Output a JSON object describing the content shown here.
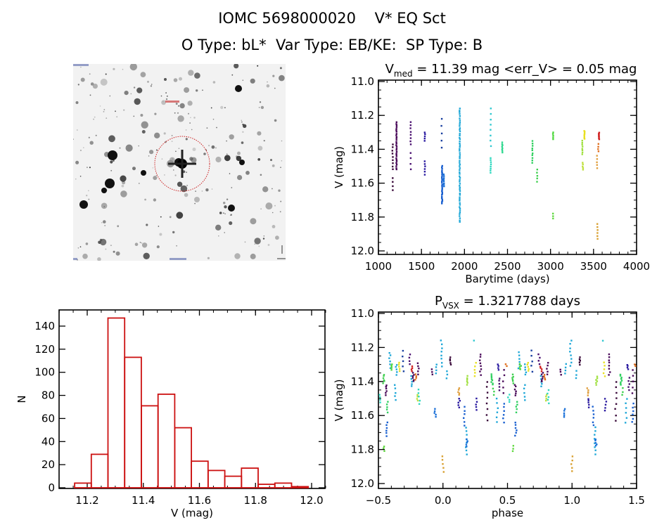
{
  "header": {
    "title_line1": "IOMC 5698000020    V* EQ Sct",
    "title_line2": "O Type: bL*  Var Type: EB/KE:  SP Type: B"
  },
  "image_panel": {
    "description": "finder chart (inverted grayscale DSS image) with red circle marking target",
    "marker_color": "#cc2222"
  },
  "chart_data": [
    {
      "id": "lightcurve",
      "type": "scatter",
      "title_main": "V",
      "title_sub": "med",
      "title_rest": " = 11.39 mag <err_V> = 0.05 mag",
      "xlabel": "Barytime (days)",
      "ylabel": "V (mag)",
      "xlim": [
        1000,
        4000
      ],
      "ylim": [
        12.0,
        11.0
      ],
      "y_inverted": true,
      "xticks": [
        "1000",
        "1500",
        "2000",
        "2500",
        "3000",
        "3500",
        "4000"
      ],
      "yticks": [
        "11.0",
        "11.2",
        "11.4",
        "11.6",
        "11.8",
        "12.0"
      ],
      "clusters": [
        {
          "t": 1165,
          "v": [
            11.37,
            11.52
          ],
          "n": 9,
          "color": "#3a0a3a"
        },
        {
          "t": 1165,
          "v": [
            11.57,
            11.64
          ],
          "n": 4,
          "color": "#3a0a3a"
        },
        {
          "t": 1210,
          "v": [
            11.24,
            11.52
          ],
          "n": 30,
          "color": "#4a0a5a"
        },
        {
          "t": 1375,
          "v": [
            11.24,
            11.37
          ],
          "n": 8,
          "color": "#4a1070"
        },
        {
          "t": 1375,
          "v": [
            11.42,
            11.52
          ],
          "n": 4,
          "color": "#4a1070"
        },
        {
          "t": 1540,
          "v": [
            11.3,
            11.35
          ],
          "n": 5,
          "color": "#2a1aa0"
        },
        {
          "t": 1540,
          "v": [
            11.47,
            11.55
          ],
          "n": 6,
          "color": "#2a1aa0"
        },
        {
          "t": 1735,
          "v": [
            11.22,
            11.39
          ],
          "n": 5,
          "color": "#1a40a0"
        },
        {
          "t": 1740,
          "v": [
            11.5,
            11.72
          ],
          "n": 28,
          "color": "#1a60d0"
        },
        {
          "t": 1760,
          "v": [
            11.55,
            11.62
          ],
          "n": 8,
          "color": "#1a70d8"
        },
        {
          "t": 1945,
          "v": [
            11.16,
            11.83
          ],
          "n": 60,
          "color": "#20a8d8"
        },
        {
          "t": 2305,
          "v": [
            11.16,
            11.38
          ],
          "n": 8,
          "color": "#30c8d0"
        },
        {
          "t": 2305,
          "v": [
            11.45,
            11.54
          ],
          "n": 8,
          "color": "#30d8c0"
        },
        {
          "t": 2440,
          "v": [
            11.36,
            11.42
          ],
          "n": 8,
          "color": "#30d890"
        },
        {
          "t": 2790,
          "v": [
            11.35,
            11.48
          ],
          "n": 10,
          "color": "#30d060"
        },
        {
          "t": 2845,
          "v": [
            11.52,
            11.59
          ],
          "n": 5,
          "color": "#40d050"
        },
        {
          "t": 3030,
          "v": [
            11.3,
            11.34
          ],
          "n": 5,
          "color": "#50d840"
        },
        {
          "t": 3030,
          "v": [
            11.78,
            11.81
          ],
          "n": 3,
          "color": "#60d840"
        },
        {
          "t": 3370,
          "v": [
            11.35,
            11.43
          ],
          "n": 8,
          "color": "#a0e040"
        },
        {
          "t": 3375,
          "v": [
            11.48,
            11.52
          ],
          "n": 5,
          "color": "#c0e040"
        },
        {
          "t": 3395,
          "v": [
            11.29,
            11.34
          ],
          "n": 8,
          "color": "#e8e020"
        },
        {
          "t": 3540,
          "v": [
            11.44,
            11.51
          ],
          "n": 5,
          "color": "#e0a040"
        },
        {
          "t": 3545,
          "v": [
            11.84,
            11.93
          ],
          "n": 6,
          "color": "#d8a030"
        },
        {
          "t": 3555,
          "v": [
            11.37,
            11.41
          ],
          "n": 4,
          "color": "#e07020"
        },
        {
          "t": 3565,
          "v": [
            11.3,
            11.34
          ],
          "n": 8,
          "color": "#d02020"
        }
      ]
    },
    {
      "id": "histogram",
      "type": "bar",
      "title": "",
      "xlabel": "V (mag)",
      "ylabel": "N",
      "xlim": [
        11.1,
        12.05
      ],
      "ylim": [
        0,
        154
      ],
      "xticks": [
        "11.2",
        "11.4",
        "11.6",
        "11.8",
        "12.0"
      ],
      "yticks": [
        "0",
        "20",
        "40",
        "60",
        "80",
        "100",
        "120",
        "140"
      ],
      "bin_start": 11.155,
      "bin_width": 0.0595,
      "values": [
        4,
        29,
        147,
        113,
        71,
        81,
        52,
        23,
        15,
        10,
        17,
        3,
        4,
        1
      ],
      "bar_color": "#cc1111"
    },
    {
      "id": "phased",
      "type": "scatter",
      "title_main": "P",
      "title_sub": "VSX",
      "title_rest": " = 1.3217788 days",
      "xlabel": "phase",
      "ylabel": "V (mag)",
      "xlim": [
        -0.5,
        1.5
      ],
      "ylim": [
        12.0,
        11.0
      ],
      "y_inverted": true,
      "period_repeat": 1.0,
      "xticks": [
        "-0.5",
        "0.0",
        "0.5",
        "1.0",
        "1.5"
      ],
      "yticks": [
        "11.0",
        "11.2",
        "11.4",
        "11.6",
        "11.8",
        "12.0"
      ],
      "clusters": [
        {
          "p": -0.49,
          "v": [
            11.48,
            11.52
          ],
          "n": 4,
          "color": "#30d8c0"
        },
        {
          "p": -0.46,
          "v": [
            11.36,
            11.41
          ],
          "n": 6,
          "color": "#40d050"
        },
        {
          "p": -0.455,
          "v": [
            11.78,
            11.81
          ],
          "n": 3,
          "color": "#60d840"
        },
        {
          "p": -0.44,
          "v": [
            11.42,
            11.48
          ],
          "n": 6,
          "color": "#4a0a5a"
        },
        {
          "p": -0.43,
          "v": [
            11.52,
            11.58
          ],
          "n": 5,
          "color": "#30d060"
        },
        {
          "p": -0.435,
          "v": [
            11.64,
            11.72
          ],
          "n": 6,
          "color": "#1a60d0"
        },
        {
          "p": -0.41,
          "v": [
            11.23,
            11.32
          ],
          "n": 6,
          "color": "#20a8d8"
        },
        {
          "p": -0.4,
          "v": [
            11.3,
            11.33
          ],
          "n": 5,
          "color": "#50d840"
        },
        {
          "p": -0.37,
          "v": [
            11.42,
            11.51
          ],
          "n": 5,
          "color": "#20a8d8"
        },
        {
          "p": -0.36,
          "v": [
            11.3,
            11.36
          ],
          "n": 5,
          "color": "#20a8d8"
        },
        {
          "p": -0.34,
          "v": [
            11.29,
            11.34
          ],
          "n": 5,
          "color": "#e8e020"
        },
        {
          "p": -0.31,
          "v": [
            11.22,
            11.34
          ],
          "n": 5,
          "color": "#1a40a0"
        },
        {
          "p": -0.255,
          "v": [
            11.24,
            11.3
          ],
          "n": 4,
          "color": "#4a1070"
        },
        {
          "p": -0.24,
          "v": [
            11.31,
            11.34
          ],
          "n": 4,
          "color": "#d02020"
        },
        {
          "p": -0.24,
          "v": [
            11.37,
            11.43
          ],
          "n": 5,
          "color": "#20a8d8"
        },
        {
          "p": -0.23,
          "v": [
            11.35,
            11.4
          ],
          "n": 6,
          "color": "#4a0a5a"
        },
        {
          "p": -0.21,
          "v": [
            11.36,
            11.39
          ],
          "n": 4,
          "color": "#e07020"
        },
        {
          "p": -0.2,
          "v": [
            11.48,
            11.51
          ],
          "n": 4,
          "color": "#c0e040"
        },
        {
          "p": -0.19,
          "v": [
            11.29,
            11.36
          ],
          "n": 5,
          "color": "#4a0a5a"
        },
        {
          "p": -0.185,
          "v": [
            11.45,
            11.53
          ],
          "n": 5,
          "color": "#30d8c0"
        },
        {
          "p": -0.085,
          "v": [
            11.33,
            11.36
          ],
          "n": 3,
          "color": "#4a0a5a"
        },
        {
          "p": -0.06,
          "v": [
            11.56,
            11.61
          ],
          "n": 5,
          "color": "#1a70d8"
        },
        {
          "p": -0.05,
          "v": [
            11.3,
            11.35
          ],
          "n": 4,
          "color": "#20a8d8"
        },
        {
          "p": -0.01,
          "v": [
            11.16,
            11.31
          ],
          "n": 8,
          "color": "#20a8d8"
        },
        {
          "p": 0.0,
          "v": [
            11.84,
            11.93
          ],
          "n": 5,
          "color": "#d8a030"
        },
        {
          "p": 0.03,
          "v": [
            11.34,
            11.38
          ],
          "n": 3,
          "color": "#20a8d8"
        },
        {
          "p": 0.06,
          "v": [
            11.26,
            11.3
          ],
          "n": 5,
          "color": "#3a0a3a"
        },
        {
          "p": 0.12,
          "v": [
            11.44,
            11.48
          ],
          "n": 5,
          "color": "#e0a040"
        },
        {
          "p": 0.125,
          "v": [
            11.5,
            11.55
          ],
          "n": 5,
          "color": "#2a1aa0"
        },
        {
          "p": 0.165,
          "v": [
            11.55,
            11.66
          ],
          "n": 6,
          "color": "#1a60d0"
        },
        {
          "p": 0.18,
          "v": [
            11.67,
            11.83
          ],
          "n": 8,
          "color": "#20a8d8"
        },
        {
          "p": 0.185,
          "v": [
            11.74,
            11.78
          ],
          "n": 5,
          "color": "#1a70d8"
        },
        {
          "p": 0.19,
          "v": [
            11.37,
            11.42
          ],
          "n": 6,
          "color": "#a0e040"
        },
        {
          "p": 0.235,
          "v": [
            11.16,
            11.17
          ],
          "n": 1,
          "color": "#30c8d0"
        },
        {
          "p": 0.25,
          "v": [
            11.29,
            11.37
          ],
          "n": 5,
          "color": "#e8e020"
        },
        {
          "p": 0.26,
          "v": [
            11.5,
            11.57
          ],
          "n": 5,
          "color": "#2a1aa0"
        },
        {
          "p": 0.29,
          "v": [
            11.24,
            11.36
          ],
          "n": 8,
          "color": "#4a0a5a"
        },
        {
          "p": 0.34,
          "v": [
            11.4,
            11.63
          ],
          "n": 8,
          "color": "#3a0a3a"
        },
        {
          "p": 0.38,
          "v": [
            11.36,
            11.42
          ],
          "n": 8,
          "color": "#30d060"
        },
        {
          "p": 0.39,
          "v": [
            11.44,
            11.48
          ],
          "n": 3,
          "color": "#40d050"
        },
        {
          "p": 0.42,
          "v": [
            11.5,
            11.64
          ],
          "n": 6,
          "color": "#20a8d8"
        },
        {
          "p": 0.43,
          "v": [
            11.3,
            11.33
          ],
          "n": 4,
          "color": "#2a1aa0"
        },
        {
          "p": 0.44,
          "v": [
            11.38,
            11.45
          ],
          "n": 5,
          "color": "#4a1070"
        },
        {
          "p": 0.47,
          "v": [
            11.33,
            11.47
          ],
          "n": 5,
          "color": "#4a0a5a"
        },
        {
          "p": 0.47,
          "v": [
            11.53,
            11.64
          ],
          "n": 6,
          "color": "#1a60d0"
        },
        {
          "p": 0.49,
          "v": [
            11.3,
            11.31
          ],
          "n": 2,
          "color": "#e07020"
        }
      ]
    }
  ]
}
